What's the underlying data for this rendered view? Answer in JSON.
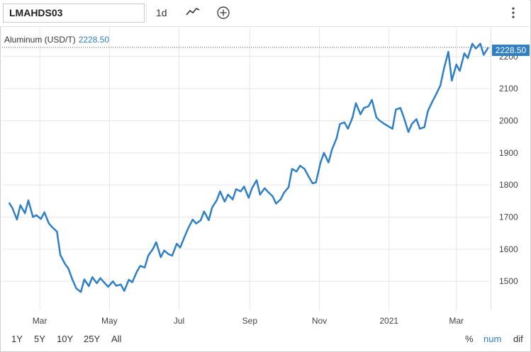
{
  "toolbar": {
    "symbol": "LMAHDS03",
    "interval": "1d",
    "line_icon": "line-chart-icon",
    "add_icon": "add-circle-icon",
    "menu_icon": "more-vertical-icon"
  },
  "series_label": {
    "name": "Aluminum (USD/T)",
    "value": "2228.50"
  },
  "price_tag": "2228.50",
  "footer": {
    "ranges": [
      "1Y",
      "5Y",
      "10Y",
      "25Y",
      "All"
    ],
    "scales": [
      "%",
      "num",
      "dif"
    ],
    "active_scale": "num"
  },
  "colors": {
    "line": "#2f7fc4",
    "grid": "#e6e6e6",
    "tag": "#2f7fc4"
  },
  "chart_data": {
    "type": "line",
    "x_tick_labels": [
      "Mar",
      "May",
      "Jul",
      "Sep",
      "Nov",
      "2021",
      "Mar"
    ],
    "y_tick_labels": [
      "1500",
      "1600",
      "1700",
      "1800",
      "1900",
      "2000",
      "2100",
      "2200"
    ],
    "ylim": [
      1410,
      2290
    ],
    "xlim": [
      "2020-01-28",
      "2021-03-31"
    ],
    "last_value": 2228.5,
    "grid": true,
    "series": [
      {
        "values": [
          [
            "2020-02-03",
            1745
          ],
          [
            "2020-02-06",
            1728
          ],
          [
            "2020-02-10",
            1692
          ],
          [
            "2020-02-13",
            1737
          ],
          [
            "2020-02-17",
            1712
          ],
          [
            "2020-02-20",
            1752
          ],
          [
            "2020-02-24",
            1700
          ],
          [
            "2020-02-27",
            1706
          ],
          [
            "2020-03-02",
            1694
          ],
          [
            "2020-03-05",
            1715
          ],
          [
            "2020-03-09",
            1680
          ],
          [
            "2020-03-12",
            1668
          ],
          [
            "2020-03-16",
            1655
          ],
          [
            "2020-03-19",
            1582
          ],
          [
            "2020-03-23",
            1555
          ],
          [
            "2020-03-26",
            1540
          ],
          [
            "2020-03-30",
            1502
          ],
          [
            "2020-04-02",
            1478
          ],
          [
            "2020-04-06",
            1467
          ],
          [
            "2020-04-09",
            1506
          ],
          [
            "2020-04-13",
            1485
          ],
          [
            "2020-04-16",
            1513
          ],
          [
            "2020-04-20",
            1494
          ],
          [
            "2020-04-23",
            1510
          ],
          [
            "2020-04-27",
            1494
          ],
          [
            "2020-04-30",
            1483
          ],
          [
            "2020-05-04",
            1500
          ],
          [
            "2020-05-07",
            1486
          ],
          [
            "2020-05-11",
            1490
          ],
          [
            "2020-05-14",
            1470
          ],
          [
            "2020-05-18",
            1505
          ],
          [
            "2020-05-21",
            1497
          ],
          [
            "2020-05-25",
            1530
          ],
          [
            "2020-05-28",
            1548
          ],
          [
            "2020-06-01",
            1543
          ],
          [
            "2020-06-04",
            1580
          ],
          [
            "2020-06-08",
            1600
          ],
          [
            "2020-06-11",
            1622
          ],
          [
            "2020-06-15",
            1575
          ],
          [
            "2020-06-18",
            1596
          ],
          [
            "2020-06-22",
            1584
          ],
          [
            "2020-06-25",
            1580
          ],
          [
            "2020-06-29",
            1617
          ],
          [
            "2020-07-02",
            1605
          ],
          [
            "2020-07-06",
            1640
          ],
          [
            "2020-07-09",
            1665
          ],
          [
            "2020-07-13",
            1692
          ],
          [
            "2020-07-16",
            1680
          ],
          [
            "2020-07-20",
            1690
          ],
          [
            "2020-07-23",
            1718
          ],
          [
            "2020-07-27",
            1690
          ],
          [
            "2020-07-30",
            1730
          ],
          [
            "2020-08-03",
            1752
          ],
          [
            "2020-08-06",
            1780
          ],
          [
            "2020-08-10",
            1748
          ],
          [
            "2020-08-13",
            1770
          ],
          [
            "2020-08-17",
            1755
          ],
          [
            "2020-08-20",
            1787
          ],
          [
            "2020-08-24",
            1780
          ],
          [
            "2020-08-27",
            1795
          ],
          [
            "2020-08-31",
            1760
          ],
          [
            "2020-09-03",
            1790
          ],
          [
            "2020-09-07",
            1815
          ],
          [
            "2020-09-10",
            1770
          ],
          [
            "2020-09-14",
            1790
          ],
          [
            "2020-09-17",
            1778
          ],
          [
            "2020-09-21",
            1765
          ],
          [
            "2020-09-24",
            1742
          ],
          [
            "2020-09-28",
            1755
          ],
          [
            "2020-10-01",
            1776
          ],
          [
            "2020-10-05",
            1793
          ],
          [
            "2020-10-08",
            1850
          ],
          [
            "2020-10-12",
            1842
          ],
          [
            "2020-10-15",
            1860
          ],
          [
            "2020-10-19",
            1850
          ],
          [
            "2020-10-22",
            1830
          ],
          [
            "2020-10-26",
            1805
          ],
          [
            "2020-10-29",
            1808
          ],
          [
            "2020-11-02",
            1870
          ],
          [
            "2020-11-05",
            1900
          ],
          [
            "2020-11-09",
            1870
          ],
          [
            "2020-11-12",
            1910
          ],
          [
            "2020-11-16",
            1945
          ],
          [
            "2020-11-19",
            1990
          ],
          [
            "2020-11-23",
            1995
          ],
          [
            "2020-11-26",
            1975
          ],
          [
            "2020-11-30",
            2010
          ],
          [
            "2020-12-03",
            2055
          ],
          [
            "2020-12-07",
            2020
          ],
          [
            "2020-12-10",
            2040
          ],
          [
            "2020-12-14",
            2045
          ],
          [
            "2020-12-17",
            2065
          ],
          [
            "2020-12-21",
            2010
          ],
          [
            "2020-12-24",
            2000
          ],
          [
            "2020-12-28",
            1990
          ],
          [
            "2021-01-04",
            1975
          ],
          [
            "2021-01-07",
            2035
          ],
          [
            "2021-01-11",
            2040
          ],
          [
            "2021-01-14",
            2010
          ],
          [
            "2021-01-18",
            1965
          ],
          [
            "2021-01-21",
            1990
          ],
          [
            "2021-01-25",
            2005
          ],
          [
            "2021-01-28",
            1975
          ],
          [
            "2021-02-01",
            1980
          ],
          [
            "2021-02-04",
            2030
          ],
          [
            "2021-02-08",
            2060
          ],
          [
            "2021-02-11",
            2080
          ],
          [
            "2021-02-15",
            2110
          ],
          [
            "2021-02-18",
            2160
          ],
          [
            "2021-02-22",
            2215
          ],
          [
            "2021-02-25",
            2125
          ],
          [
            "2021-03-01",
            2175
          ],
          [
            "2021-03-04",
            2155
          ],
          [
            "2021-03-08",
            2210
          ],
          [
            "2021-03-11",
            2195
          ],
          [
            "2021-03-15",
            2240
          ],
          [
            "2021-03-18",
            2225
          ],
          [
            "2021-03-22",
            2240
          ],
          [
            "2021-03-25",
            2205
          ],
          [
            "2021-03-29",
            2228.5
          ]
        ]
      }
    ]
  }
}
